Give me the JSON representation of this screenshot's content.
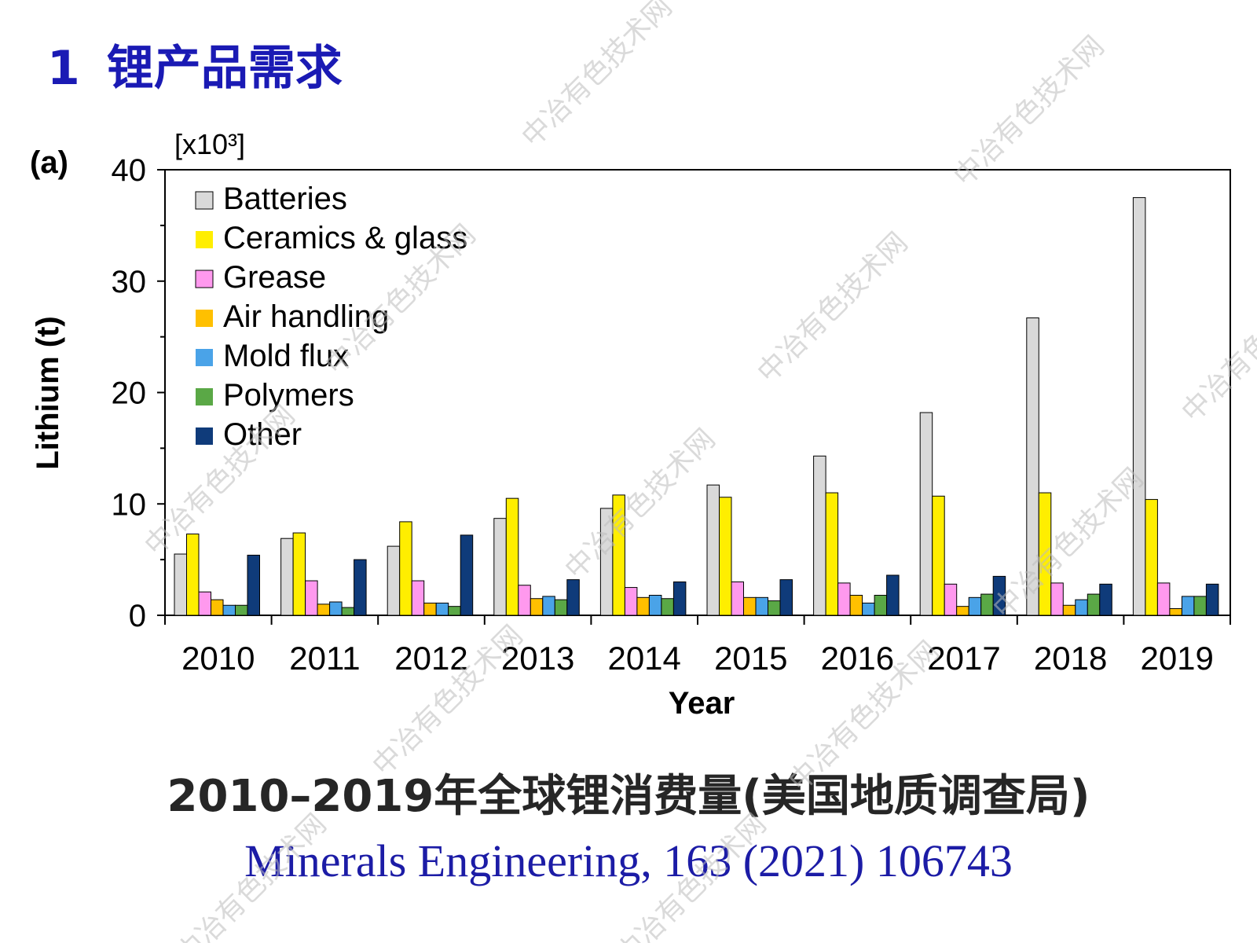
{
  "slide": {
    "title_number": "1",
    "title": "锂产品需求",
    "caption": "2010–2019年全球锂消费量(美国地质调查局)",
    "reference": "Minerals Engineering, 163 (2021) 106743",
    "watermark": "中冶有色技术网"
  },
  "chart_data": {
    "type": "bar",
    "panel_label": "(a)",
    "y_unit_label": "[x10³]",
    "xlabel": "Year",
    "ylabel": "Lithium (t)",
    "ylim": [
      0,
      40
    ],
    "yticks": [
      0,
      10,
      20,
      30,
      40
    ],
    "legend_position": "top-left",
    "grid": false,
    "categories": [
      "2010",
      "2011",
      "2012",
      "2013",
      "2014",
      "2015",
      "2016",
      "2017",
      "2018",
      "2019"
    ],
    "series": [
      {
        "name": "Batteries",
        "color": "#d9d9d9",
        "values": [
          5.5,
          6.9,
          6.2,
          8.7,
          9.6,
          11.7,
          14.3,
          18.2,
          26.7,
          37.5
        ]
      },
      {
        "name": "Ceramics & glass",
        "color": "#ffee00",
        "values": [
          7.3,
          7.4,
          8.4,
          10.5,
          10.8,
          10.6,
          11.0,
          10.7,
          11.0,
          10.4
        ]
      },
      {
        "name": "Grease",
        "color": "#ff99ee",
        "values": [
          2.1,
          3.1,
          3.1,
          2.7,
          2.5,
          3.0,
          2.9,
          2.8,
          2.9,
          2.9
        ]
      },
      {
        "name": "Air handling",
        "color": "#ffc000",
        "values": [
          1.4,
          1.0,
          1.1,
          1.5,
          1.6,
          1.6,
          1.8,
          0.8,
          0.9,
          0.6
        ]
      },
      {
        "name": "Mold flux",
        "color": "#4aa3e8",
        "values": [
          0.9,
          1.2,
          1.1,
          1.7,
          1.8,
          1.6,
          1.1,
          1.6,
          1.4,
          1.7
        ]
      },
      {
        "name": "Polymers",
        "color": "#5aa846",
        "values": [
          0.9,
          0.7,
          0.8,
          1.4,
          1.5,
          1.3,
          1.8,
          1.9,
          1.9,
          1.7
        ]
      },
      {
        "name": "Other",
        "color": "#0f3b7a",
        "values": [
          5.4,
          5.0,
          7.2,
          3.2,
          3.0,
          3.2,
          3.6,
          3.5,
          2.8,
          2.8
        ]
      }
    ]
  }
}
